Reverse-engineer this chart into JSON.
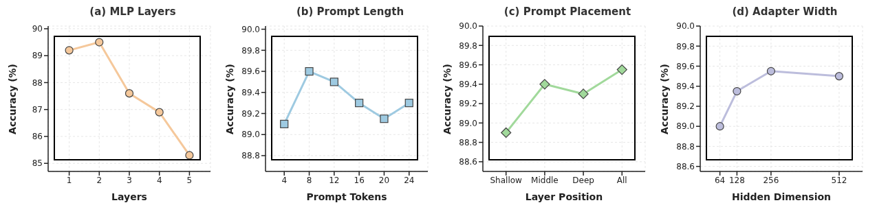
{
  "chart_data": [
    {
      "type": "line",
      "title": "(a) MLP Layers",
      "xlabel": "Layers",
      "ylabel": "Accuracy (%)",
      "x": [
        1,
        2,
        3,
        4,
        5
      ],
      "series": [
        {
          "color": "#f5c89b",
          "values": [
            89.2,
            89.5,
            87.6,
            86.9,
            85.3
          ]
        }
      ],
      "xlim": [
        0.3,
        5.7
      ],
      "xticks": [
        1,
        2,
        3,
        4,
        5
      ],
      "ylim": [
        84.7,
        90.1
      ],
      "yticks": [
        85,
        86,
        87,
        88,
        89,
        90
      ],
      "grid": true,
      "marker": "circle",
      "legend": false
    },
    {
      "type": "line",
      "title": "(b) Prompt Length",
      "xlabel": "Prompt Tokens",
      "ylabel": "Accuracy (%)",
      "x": [
        4,
        8,
        12,
        16,
        20,
        24
      ],
      "series": [
        {
          "color": "#9ecae1",
          "values": [
            89.1,
            89.6,
            89.5,
            89.3,
            89.15,
            89.3
          ]
        }
      ],
      "xlim": [
        1,
        27
      ],
      "xticks": [
        4,
        8,
        12,
        16,
        20,
        24
      ],
      "ylim": [
        88.65,
        90.03
      ],
      "yticks": [
        {
          "value": 88.8,
          "label": "88.8"
        },
        {
          "value": 89,
          "label": "89.0"
        },
        {
          "value": 89.2,
          "label": "89.2"
        },
        {
          "value": 89.4,
          "label": "89.4"
        },
        {
          "value": 89.6,
          "label": "89.6"
        },
        {
          "value": 89.8,
          "label": "89.8"
        },
        {
          "value": 90,
          "label": "90.0"
        }
      ],
      "grid": true,
      "marker": "square",
      "legend": false
    },
    {
      "type": "line",
      "title": "(c) Prompt Placement",
      "xlabel": "Layer Position",
      "ylabel": "Accuracy (%)",
      "categories": [
        "Shallow",
        "Middle",
        "Deep",
        "All"
      ],
      "series": [
        {
          "color": "#a1d99b",
          "values": [
            88.9,
            89.4,
            89.3,
            89.55
          ]
        }
      ],
      "ylim": [
        88.5,
        90
      ],
      "yticks": [
        {
          "value": 88.6,
          "label": "88.6"
        },
        {
          "value": 88.8,
          "label": "88.8"
        },
        {
          "value": 89,
          "label": "89.0"
        },
        {
          "value": 89.2,
          "label": "89.2"
        },
        {
          "value": 89.4,
          "label": "89.4"
        },
        {
          "value": 89.6,
          "label": "89.6"
        },
        {
          "value": 89.8,
          "label": "89.8"
        },
        {
          "value": 90,
          "label": "90.0"
        }
      ],
      "grid": true,
      "marker": "diamond",
      "legend": false
    },
    {
      "type": "line",
      "title": "(d) Adapter Width",
      "xlabel": "Hidden Dimension",
      "ylabel": "Accuracy (%)",
      "x": [
        64,
        128,
        256,
        512
      ],
      "series": [
        {
          "color": "#bcbddc",
          "values": [
            89,
            89.35,
            89.55,
            89.5
          ]
        }
      ],
      "xlim": [
        -10,
        600
      ],
      "xticks": [
        64,
        128,
        256,
        512
      ],
      "ylim": [
        88.55,
        90
      ],
      "yticks": [
        {
          "value": 88.6,
          "label": "88.6"
        },
        {
          "value": 88.8,
          "label": "88.8"
        },
        {
          "value": 89,
          "label": "89.0"
        },
        {
          "value": 89.2,
          "label": "89.2"
        },
        {
          "value": 89.4,
          "label": "89.4"
        },
        {
          "value": 89.6,
          "label": "89.6"
        },
        {
          "value": 89.8,
          "label": "89.8"
        },
        {
          "value": 90,
          "label": "90.0"
        }
      ],
      "grid": true,
      "marker": "circle",
      "legend": false
    }
  ]
}
